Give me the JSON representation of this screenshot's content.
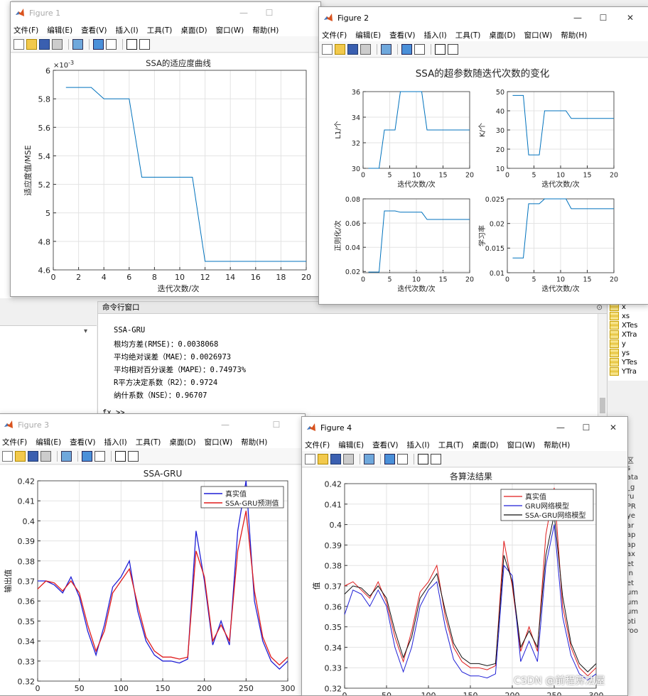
{
  "figure1": {
    "title": "Figure 1",
    "menus": [
      "文件(F)",
      "编辑(E)",
      "查看(V)",
      "插入(I)",
      "工具(T)",
      "桌面(D)",
      "窗口(W)",
      "帮助(H)"
    ],
    "plot_title": "SSA的适应度曲线",
    "xlabel": "迭代次数/次",
    "ylabel": "适应度值/MSE",
    "exponent": "×10",
    "exponent_power": "-3"
  },
  "figure2": {
    "title": "Figure 2",
    "menus": [
      "文件(F)",
      "编辑(E)",
      "查看(V)",
      "插入(I)",
      "工具(T)",
      "桌面(D)",
      "窗口(W)",
      "帮助(H)"
    ],
    "suptitle": "SSA的超参数随迭代次数的变化",
    "sub_xlabel": "迭代次数/次",
    "ylabels": [
      "L1/个",
      "K/个",
      "正则化/次",
      "学习率"
    ]
  },
  "figure3": {
    "title": "Figure 3",
    "menus": [
      "文件(F)",
      "编辑(E)",
      "查看(V)",
      "插入(I)",
      "工具(T)",
      "桌面(D)",
      "窗口(W)",
      "帮助(H)"
    ],
    "plot_title": "SSA-GRU",
    "ylabel": "输出值",
    "legend": [
      "真实值",
      "SSA-GRU预测值"
    ]
  },
  "figure4": {
    "title": "Figure 4",
    "menus": [
      "文件(F)",
      "编辑(E)",
      "查看(V)",
      "插入(I)",
      "工具(T)",
      "桌面(D)",
      "窗口(W)",
      "帮助(H)"
    ],
    "plot_title": "各算法结果",
    "ylabel": "值",
    "legend": [
      "真实值",
      "GRU网络模型",
      "SSA-GRU网络模型"
    ]
  },
  "command_window": {
    "header": "命令行窗口",
    "lines": [
      "SSA-GRU",
      "根均方差(RMSE)：0.0038068",
      "平均绝对误差（MAE）：0.0026973",
      "平均相对百分误差（MAPE）：0.74973%",
      "R平方决定系数（R2）：0.9724",
      "纳什系数（NSE）：0.96707"
    ],
    "prompt": "fx >>"
  },
  "workspace": [
    "x",
    "xs",
    "XTes",
    "XTra",
    "y",
    "ys",
    "YTes",
    "YTra"
  ],
  "right_strip": [
    "区",
    "s",
    "ata",
    "_g",
    "ru",
    "PR",
    "ye",
    "ar",
    "ap",
    "ap",
    "ax",
    "et",
    "in",
    "et",
    "um",
    "um",
    "um",
    "oti",
    "roo"
  ],
  "watermark": "CSDN @前程算法屋",
  "colors": {
    "blue": "#1f1fd6",
    "red": "#e01b1b",
    "matlab_line": "#0072bd",
    "black": "#111111"
  },
  "chart_data": [
    {
      "type": "line",
      "title": "SSA的适应度曲线",
      "xlabel": "迭代次数/次",
      "ylabel": "适应度值/MSE",
      "xlim": [
        0,
        20
      ],
      "ylim": [
        4.6,
        6.0
      ],
      "xticks": [
        0,
        2,
        4,
        6,
        8,
        10,
        12,
        14,
        16,
        18,
        20
      ],
      "yticks": [
        4.6,
        4.8,
        5.0,
        5.2,
        5.4,
        5.6,
        5.8,
        6.0
      ],
      "ytick_labels": [
        "4.6",
        "4.8",
        "5",
        "5.2",
        "5.4",
        "5.6",
        "5.8",
        "6"
      ],
      "grid": true,
      "x": [
        1,
        2,
        3,
        4,
        5,
        6,
        7,
        8,
        9,
        10,
        11,
        12,
        13,
        14,
        15,
        16,
        17,
        18,
        19,
        20
      ],
      "y": [
        5.88,
        5.88,
        5.88,
        5.8,
        5.8,
        5.8,
        5.25,
        5.25,
        5.25,
        5.25,
        5.25,
        4.66,
        4.66,
        4.66,
        4.66,
        4.66,
        4.66,
        4.66,
        4.66,
        4.66
      ]
    },
    {
      "type": "line",
      "title": "L1/个",
      "xlim": [
        0,
        20
      ],
      "ylim": [
        30,
        36
      ],
      "xticks": [
        0,
        5,
        10,
        15,
        20
      ],
      "yticks": [
        30,
        32,
        34,
        36
      ],
      "grid": true,
      "x": [
        1,
        2,
        3,
        4,
        5,
        6,
        7,
        8,
        9,
        10,
        11,
        12,
        13,
        14,
        15,
        16,
        17,
        18,
        19,
        20
      ],
      "y": [
        30,
        30,
        30,
        33,
        33,
        33,
        36,
        36,
        36,
        36,
        36,
        33,
        33,
        33,
        33,
        33,
        33,
        33,
        33,
        33
      ]
    },
    {
      "type": "line",
      "title": "K/个",
      "xlim": [
        0,
        20
      ],
      "ylim": [
        10,
        50
      ],
      "xticks": [
        0,
        5,
        10,
        15,
        20
      ],
      "yticks": [
        10,
        20,
        30,
        40,
        50
      ],
      "grid": true,
      "x": [
        1,
        2,
        3,
        4,
        5,
        6,
        7,
        8,
        9,
        10,
        11,
        12,
        13,
        14,
        15,
        16,
        17,
        18,
        19,
        20
      ],
      "y": [
        48,
        48,
        48,
        17,
        17,
        17,
        40,
        40,
        40,
        40,
        40,
        36,
        36,
        36,
        36,
        36,
        36,
        36,
        36,
        36
      ]
    },
    {
      "type": "line",
      "title": "正则化/次",
      "xlim": [
        0,
        20
      ],
      "ylim": [
        0.019,
        0.08
      ],
      "xticks": [
        0,
        5,
        10,
        15,
        20
      ],
      "yticks": [
        0.02,
        0.04,
        0.06,
        0.08
      ],
      "grid": true,
      "x": [
        1,
        2,
        3,
        4,
        5,
        6,
        7,
        8,
        9,
        10,
        11,
        12,
        13,
        14,
        15,
        16,
        17,
        18,
        19,
        20
      ],
      "y": [
        0.0195,
        0.0195,
        0.0195,
        0.07,
        0.07,
        0.07,
        0.069,
        0.069,
        0.069,
        0.069,
        0.069,
        0.063,
        0.063,
        0.063,
        0.063,
        0.063,
        0.063,
        0.063,
        0.063,
        0.063
      ]
    },
    {
      "type": "line",
      "title": "学习率",
      "xlim": [
        0,
        20
      ],
      "ylim": [
        0.01,
        0.025
      ],
      "xticks": [
        0,
        5,
        10,
        15,
        20
      ],
      "yticks": [
        0.01,
        0.015,
        0.02,
        0.025
      ],
      "grid": true,
      "x": [
        1,
        2,
        3,
        4,
        5,
        6,
        7,
        8,
        9,
        10,
        11,
        12,
        13,
        14,
        15,
        16,
        17,
        18,
        19,
        20
      ],
      "y": [
        0.013,
        0.013,
        0.013,
        0.024,
        0.024,
        0.024,
        0.025,
        0.025,
        0.025,
        0.025,
        0.025,
        0.023,
        0.023,
        0.023,
        0.023,
        0.023,
        0.023,
        0.023,
        0.023,
        0.023
      ]
    },
    {
      "type": "line",
      "title": "SSA-GRU",
      "ylabel": "输出值",
      "xlim": [
        0,
        300
      ],
      "ylim": [
        0.32,
        0.42
      ],
      "xticks": [
        0,
        50,
        100,
        150,
        200,
        250,
        300
      ],
      "yticks": [
        0.32,
        0.33,
        0.34,
        0.35,
        0.36,
        0.37,
        0.38,
        0.39,
        0.4,
        0.41,
        0.42
      ],
      "grid": true,
      "legend_position": "top-right",
      "x": [
        0,
        10,
        20,
        30,
        40,
        50,
        60,
        70,
        80,
        90,
        100,
        110,
        120,
        130,
        140,
        150,
        160,
        170,
        180,
        190,
        200,
        210,
        220,
        230,
        240,
        250,
        260,
        270,
        280,
        290,
        300
      ],
      "series": [
        {
          "name": "真实值",
          "color": "#1f1fd6",
          "values": [
            0.37,
            0.37,
            0.368,
            0.364,
            0.372,
            0.362,
            0.345,
            0.333,
            0.348,
            0.367,
            0.372,
            0.38,
            0.355,
            0.34,
            0.333,
            0.33,
            0.33,
            0.329,
            0.331,
            0.395,
            0.37,
            0.338,
            0.35,
            0.338,
            0.395,
            0.42,
            0.36,
            0.34,
            0.33,
            0.326,
            0.33
          ]
        },
        {
          "name": "SSA-GRU预测值",
          "color": "#e01b1b",
          "values": [
            0.366,
            0.37,
            0.369,
            0.365,
            0.37,
            0.364,
            0.348,
            0.335,
            0.345,
            0.364,
            0.37,
            0.376,
            0.358,
            0.342,
            0.335,
            0.332,
            0.332,
            0.331,
            0.332,
            0.385,
            0.372,
            0.34,
            0.348,
            0.34,
            0.385,
            0.405,
            0.365,
            0.342,
            0.332,
            0.328,
            0.332
          ]
        }
      ]
    },
    {
      "type": "line",
      "title": "各算法结果",
      "ylabel": "值",
      "xlim": [
        0,
        300
      ],
      "ylim": [
        0.32,
        0.42
      ],
      "xticks": [
        0,
        50,
        100,
        150,
        200,
        250,
        300
      ],
      "yticks": [
        0.32,
        0.33,
        0.34,
        0.35,
        0.36,
        0.37,
        0.38,
        0.39,
        0.4,
        0.41,
        0.42
      ],
      "grid": true,
      "legend_position": "top-right",
      "x": [
        0,
        10,
        20,
        30,
        40,
        50,
        60,
        70,
        80,
        90,
        100,
        110,
        120,
        130,
        140,
        150,
        160,
        170,
        180,
        190,
        200,
        210,
        220,
        230,
        240,
        250,
        260,
        270,
        280,
        290,
        300
      ],
      "series": [
        {
          "name": "真实值",
          "color": "#e01b1b",
          "values": [
            0.37,
            0.372,
            0.368,
            0.364,
            0.372,
            0.362,
            0.345,
            0.333,
            0.348,
            0.367,
            0.372,
            0.38,
            0.355,
            0.34,
            0.333,
            0.33,
            0.33,
            0.329,
            0.331,
            0.392,
            0.37,
            0.338,
            0.35,
            0.338,
            0.395,
            0.418,
            0.36,
            0.34,
            0.33,
            0.326,
            0.33
          ]
        },
        {
          "name": "GRU网络模型",
          "color": "#1f1fd6",
          "values": [
            0.356,
            0.368,
            0.366,
            0.36,
            0.368,
            0.36,
            0.34,
            0.328,
            0.34,
            0.36,
            0.368,
            0.372,
            0.35,
            0.334,
            0.328,
            0.326,
            0.326,
            0.325,
            0.327,
            0.38,
            0.375,
            0.333,
            0.343,
            0.333,
            0.38,
            0.4,
            0.355,
            0.336,
            0.327,
            0.324,
            0.327
          ]
        },
        {
          "name": "SSA-GRU网络模型",
          "color": "#111111",
          "values": [
            0.366,
            0.37,
            0.369,
            0.365,
            0.37,
            0.364,
            0.348,
            0.335,
            0.345,
            0.364,
            0.37,
            0.376,
            0.358,
            0.342,
            0.335,
            0.332,
            0.332,
            0.331,
            0.332,
            0.385,
            0.372,
            0.34,
            0.348,
            0.34,
            0.385,
            0.405,
            0.365,
            0.342,
            0.332,
            0.328,
            0.332
          ]
        }
      ]
    }
  ]
}
